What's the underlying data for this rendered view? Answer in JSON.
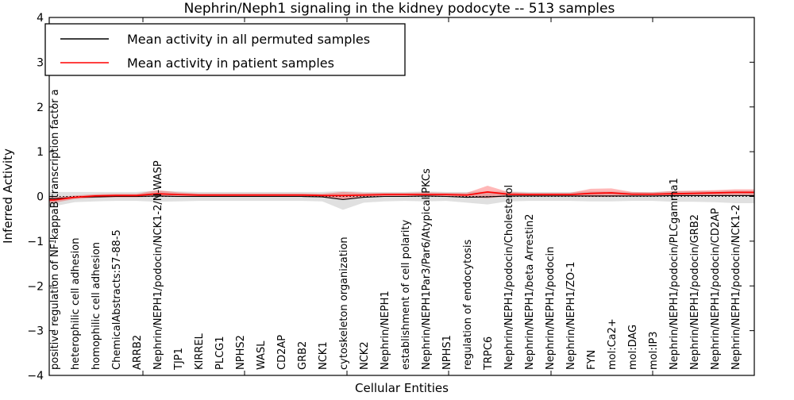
{
  "title": "Nephrin/Neph1 signaling in the kidney podocyte -- 513 samples",
  "xlabel": "Cellular Entities",
  "ylabel": "Inferred Activity",
  "legend": {
    "items": [
      {
        "label": "Mean activity in all permuted samples",
        "color": "#000000"
      },
      {
        "label": "Mean activity in patient samples",
        "color": "#ff0000"
      }
    ]
  },
  "chart_data": {
    "type": "line",
    "ylim": [
      -4,
      4
    ],
    "grid": false,
    "legend_position": "upper left",
    "zero_reference_line": "dotted",
    "yticks": [
      {
        "label": "4",
        "value": 4
      },
      {
        "label": "3",
        "value": 3
      },
      {
        "label": "2",
        "value": 2
      },
      {
        "label": "1",
        "value": 1
      },
      {
        "label": "0",
        "value": 0
      },
      {
        "label": "−1",
        "value": -1
      },
      {
        "label": "−2",
        "value": -2
      },
      {
        "label": "−3",
        "value": -3
      },
      {
        "label": "−4",
        "value": -4
      }
    ],
    "categories": [
      "positive regulation of NF-kappaB transcription factor a",
      "heterophilic cell adhesion",
      "homophilic cell adhesion",
      "ChemicalAbstracts:57-88-5",
      "ARRB2",
      "Nephrin/NEPH1/podocin/NCK1-2/N-WASP",
      "TJP1",
      "KIRREL",
      "PLCG1",
      "NPHS2",
      "WASL",
      "CD2AP",
      "GRB2",
      "NCK1",
      "cytoskeleton organization",
      "NCK2",
      "Nephrin/NEPH1",
      "establishment of cell polarity",
      "Nephrin/NEPH1Par3/Par6/Atypical PKCs",
      "NPHS1",
      "regulation of endocytosis",
      "TRPC6",
      "Nephrin/NEPH1/podocin/Cholesterol",
      "Nephrin/NEPH1/beta Arrestin2",
      "Nephrin/NEPH1/podocin",
      "Nephrin/NEPH1/ZO-1",
      "FYN",
      "mol:Ca2+",
      "mol:DAG",
      "mol:IP3",
      "Nephrin/NEPH1/podocin/PLCgamma1",
      "Nephrin/NEPH1/podocin/GRB2",
      "Nephrin/NEPH1/podocin/CD2AP",
      "Nephrin/NEPH1/podocin/NCK1-2"
    ],
    "series": [
      {
        "name": "Mean activity in all permuted samples",
        "color": "#000000",
        "width": 1.1,
        "values": [
          -0.05,
          -0.02,
          -0.01,
          0,
          0,
          0.01,
          0,
          0,
          0,
          0,
          0,
          0,
          0,
          -0.01,
          -0.07,
          -0.02,
          0,
          0,
          0.01,
          0,
          -0.02,
          -0.01,
          0.01,
          0.01,
          0.01,
          0.01,
          0.01,
          0.01,
          0.01,
          0.01,
          0.02,
          0.02,
          0.02,
          0.02
        ]
      },
      {
        "name": "Mean activity in patient samples",
        "color": "#ff0000",
        "width": 1.7,
        "values": [
          -0.08,
          -0.02,
          0.01,
          0.02,
          0.02,
          0.06,
          0.04,
          0.03,
          0.03,
          0.03,
          0.03,
          0.03,
          0.03,
          0.02,
          0.02,
          0.03,
          0.04,
          0.04,
          0.04,
          0.04,
          0.03,
          0.1,
          0.05,
          0.04,
          0.04,
          0.04,
          0.07,
          0.08,
          0.05,
          0.05,
          0.06,
          0.07,
          0.08,
          0.09
        ]
      }
    ],
    "bands": [
      {
        "name": "permuted-samples-range",
        "color": "rgba(0,0,0,0.12)",
        "upper": [
          0.1,
          0.1,
          0.1,
          0.1,
          0.1,
          0.13,
          0.11,
          0.1,
          0.1,
          0.1,
          0.1,
          0.1,
          0.1,
          0.1,
          0.12,
          0.1,
          0.1,
          0.1,
          0.11,
          0.1,
          0.1,
          0.11,
          0.11,
          0.1,
          0.1,
          0.1,
          0.11,
          0.11,
          0.1,
          0.1,
          0.12,
          0.12,
          0.12,
          0.13
        ],
        "lower": [
          -0.22,
          -0.13,
          -0.11,
          -0.1,
          -0.1,
          -0.12,
          -0.11,
          -0.1,
          -0.1,
          -0.1,
          -0.1,
          -0.1,
          -0.1,
          -0.11,
          -0.3,
          -0.14,
          -0.11,
          -0.1,
          -0.11,
          -0.1,
          -0.14,
          -0.18,
          -0.11,
          -0.1,
          -0.1,
          -0.1,
          -0.11,
          -0.11,
          -0.1,
          -0.1,
          -0.12,
          -0.12,
          -0.13,
          -0.15
        ]
      },
      {
        "name": "patient-samples-range",
        "color": "rgba(255,0,0,0.28)",
        "upper": [
          -0.02,
          0.02,
          0.05,
          0.06,
          0.06,
          0.14,
          0.09,
          0.07,
          0.07,
          0.07,
          0.07,
          0.07,
          0.07,
          0.06,
          0.1,
          0.08,
          0.08,
          0.08,
          0.09,
          0.08,
          0.08,
          0.24,
          0.1,
          0.08,
          0.08,
          0.08,
          0.17,
          0.18,
          0.1,
          0.09,
          0.12,
          0.13,
          0.14,
          0.16
        ],
        "lower": [
          -0.14,
          -0.06,
          -0.03,
          -0.02,
          -0.02,
          0.0,
          -0.01,
          -0.01,
          -0.01,
          -0.01,
          -0.01,
          -0.01,
          -0.01,
          -0.02,
          -0.08,
          -0.02,
          0.0,
          0.0,
          0.0,
          0.0,
          -0.02,
          -0.04,
          0.0,
          0.0,
          0.0,
          0.0,
          -0.01,
          -0.01,
          0.0,
          0.01,
          0.01,
          0.02,
          0.02,
          0.03
        ]
      }
    ]
  }
}
